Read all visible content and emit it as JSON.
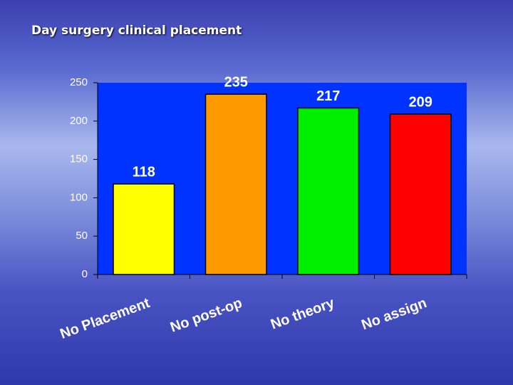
{
  "chart_data": {
    "type": "bar",
    "title": "Day surgery clinical placement",
    "categories": [
      "No Placement",
      "No post-op",
      "No theory",
      "No assign"
    ],
    "values": [
      118,
      235,
      217,
      209
    ],
    "colors": [
      "#ffff00",
      "#ff9900",
      "#00ee00",
      "#ff0000"
    ],
    "plot_background": "#0033ff",
    "ylim": [
      0,
      250
    ],
    "yticks": [
      0,
      50,
      100,
      150,
      200,
      250
    ],
    "grid": false
  }
}
